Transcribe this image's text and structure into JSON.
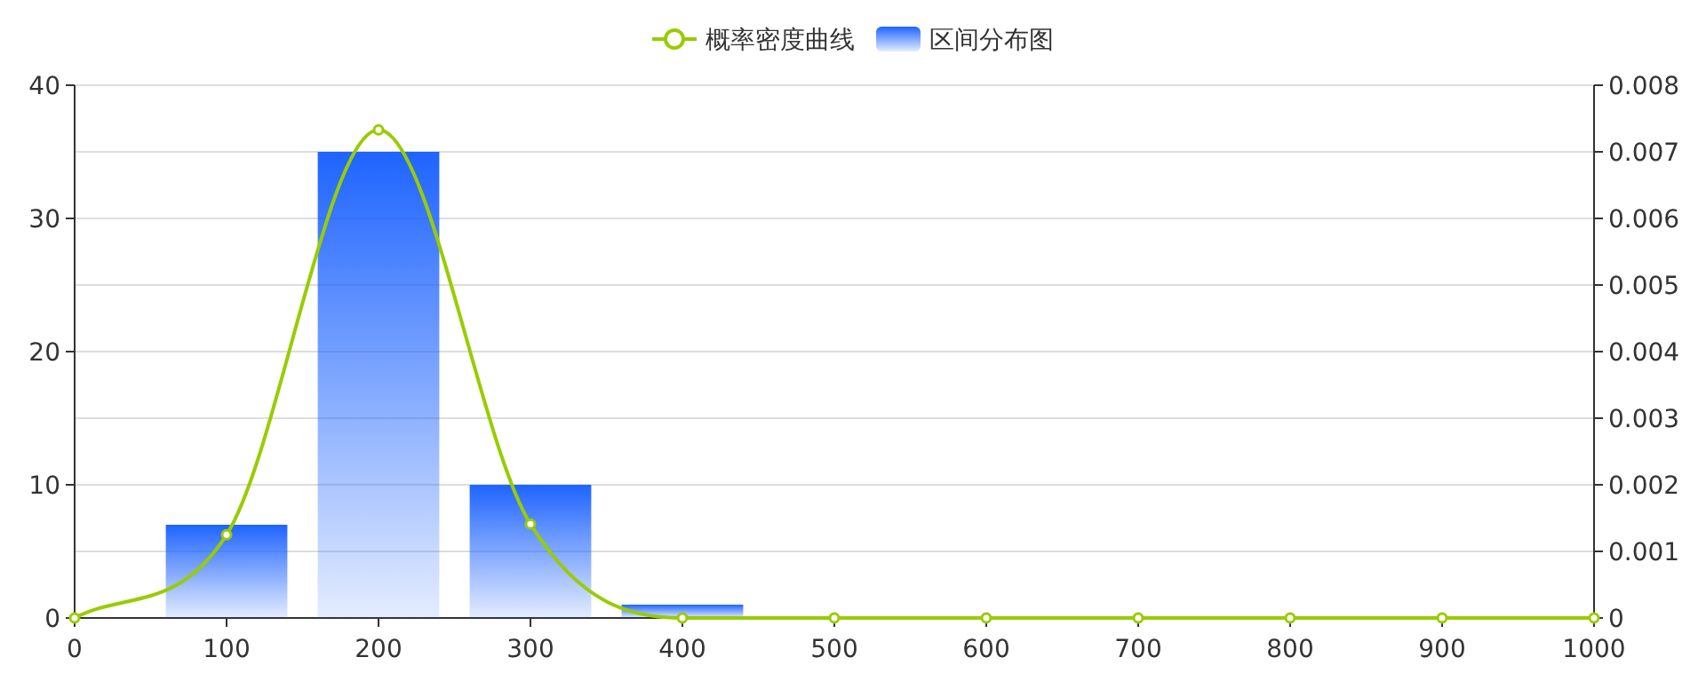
{
  "chart_data": {
    "type": "bar",
    "legend": "top",
    "grid": "y",
    "xlim": [
      0,
      1000
    ],
    "xticks": [
      0,
      100,
      200,
      300,
      400,
      500,
      600,
      700,
      800,
      900,
      1000
    ],
    "ylim": [
      0,
      40
    ],
    "yticks": [
      0,
      10,
      20,
      30,
      40
    ],
    "y2lim": [
      0,
      0.008
    ],
    "y2ticks": [
      0,
      0.001,
      0.002,
      0.003,
      0.004,
      0.005,
      0.006,
      0.007,
      0.008
    ],
    "series": [
      {
        "name": "概率密度曲线",
        "type": "line",
        "axis": "y2",
        "color": "#99cc00",
        "marker": "circle",
        "line_style": "solid",
        "x": [
          0,
          100,
          200,
          300,
          400,
          500,
          600,
          700,
          800,
          900,
          1000
        ],
        "values": [
          0,
          0.00125,
          0.00733,
          0.00141,
          0,
          0,
          0,
          0,
          0,
          0,
          0
        ]
      },
      {
        "name": "区间分布图",
        "color": "#1e64ff",
        "x": [
          100,
          200,
          300,
          400
        ],
        "values": [
          7,
          35,
          10,
          1
        ]
      }
    ]
  }
}
